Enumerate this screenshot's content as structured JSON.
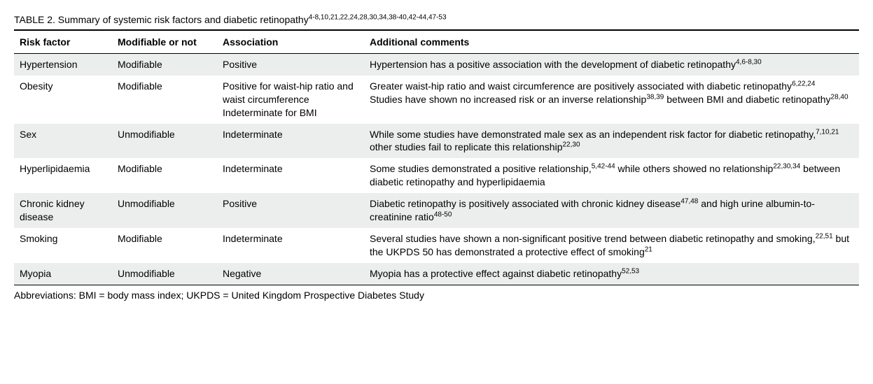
{
  "title": {
    "label": "TABLE 2.",
    "text": "Summary of systemic risk factors and diabetic retinopathy",
    "sup": "4-8,10,21,22,24,28,30,34,38-40,42-44,47-53"
  },
  "columns": [
    "Risk factor",
    "Modifiable or not",
    "Association",
    "Additional comments"
  ],
  "rows": [
    {
      "risk_factor": "Hypertension",
      "modifiable": "Modifiable",
      "association": "Positive",
      "comments_parts": [
        {
          "text": "Hypertension has a positive association with the development of diabetic retinopathy"
        },
        {
          "sup": "4,6-8,30"
        }
      ]
    },
    {
      "risk_factor": "Obesity",
      "modifiable": "Modifiable",
      "association": "Positive for waist-hip ratio and waist circumference\nIndeterminate for BMI",
      "comments_parts": [
        {
          "text": "Greater waist-hip ratio and waist circumference are positively associated with diabetic retinopathy"
        },
        {
          "sup": "6,22,24"
        },
        {
          "br": true
        },
        {
          "text": "Studies have shown no increased risk or an inverse relationship"
        },
        {
          "sup": "38,39"
        },
        {
          "text": " between BMI and diabetic retinopathy"
        },
        {
          "sup": "28,40"
        }
      ]
    },
    {
      "risk_factor": "Sex",
      "modifiable": "Unmodifiable",
      "association": "Indeterminate",
      "comments_parts": [
        {
          "text": "While some studies have demonstrated male sex as an independent risk factor for diabetic retinopathy,"
        },
        {
          "sup": "7,10,21"
        },
        {
          "text": " other studies fail to replicate this relationship"
        },
        {
          "sup": "22,30"
        }
      ]
    },
    {
      "risk_factor": "Hyperlipidaemia",
      "modifiable": "Modifiable",
      "association": "Indeterminate",
      "comments_parts": [
        {
          "text": "Some studies demonstrated a positive relationship,"
        },
        {
          "sup": "5,42-44"
        },
        {
          "text": " while others showed no relationship"
        },
        {
          "sup": "22,30,34"
        },
        {
          "text": " between diabetic retinopathy and hyperlipidaemia"
        }
      ]
    },
    {
      "risk_factor": "Chronic kidney disease",
      "modifiable": "Unmodifiable",
      "association": "Positive",
      "comments_parts": [
        {
          "text": "Diabetic retinopathy is positively associated with chronic kidney disease"
        },
        {
          "sup": "47,48"
        },
        {
          "text": " and high urine albumin-to-creatinine ratio"
        },
        {
          "sup": "48-50"
        }
      ]
    },
    {
      "risk_factor": "Smoking",
      "modifiable": "Modifiable",
      "association": "Indeterminate",
      "comments_parts": [
        {
          "text": "Several studies have shown a non-significant positive trend between diabetic retinopathy and smoking,"
        },
        {
          "sup": "22,51"
        },
        {
          "text": " but the UKPDS 50 has demonstrated a protective effect of smoking"
        },
        {
          "sup": "21"
        }
      ]
    },
    {
      "risk_factor": "Myopia",
      "modifiable": "Unmodifiable",
      "association": "Negative",
      "comments_parts": [
        {
          "text": "Myopia has a protective effect against diabetic retinopathy"
        },
        {
          "sup": "52,53"
        }
      ]
    }
  ],
  "footer": "Abbreviations: BMI = body mass index; UKPDS = United Kingdom Prospective Diabetes Study"
}
